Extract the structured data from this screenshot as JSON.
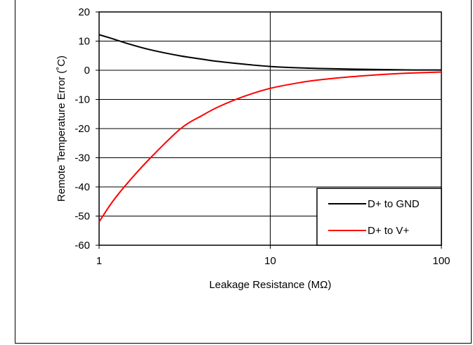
{
  "chart_data": {
    "type": "line",
    "xlabel": "Leakage Resistance (MΩ)",
    "ylabel": "Remote Temperature Error (˚C)",
    "xscale": "log",
    "xlim": [
      1,
      100
    ],
    "ylim": [
      -60,
      20
    ],
    "x_ticks": [
      1,
      10,
      100
    ],
    "x_tick_labels": [
      "1",
      "10",
      "100"
    ],
    "y_ticks": [
      20,
      10,
      0,
      -10,
      -20,
      -30,
      -40,
      -50,
      -60
    ],
    "y_tick_labels": [
      "20",
      "10",
      "0",
      "-10",
      "-20",
      "-30",
      "-40",
      "-50",
      "-60"
    ],
    "grid": true,
    "legend_position": "bottom-right",
    "series": [
      {
        "name": "D+ to GND",
        "color": "#000000",
        "x": [
          1,
          1.2,
          1.5,
          2,
          3,
          4,
          5,
          7,
          10,
          15,
          20,
          30,
          50,
          70,
          100
        ],
        "y": [
          12.2,
          10.8,
          9.0,
          7.0,
          4.9,
          3.8,
          3.0,
          2.1,
          1.3,
          0.8,
          0.6,
          0.4,
          0.2,
          0.1,
          0.1
        ]
      },
      {
        "name": "D+ to V+",
        "color": "#ff0000",
        "x": [
          1,
          1.2,
          1.5,
          2,
          3,
          4,
          5,
          7,
          10,
          15,
          20,
          30,
          50,
          70,
          100
        ],
        "y": [
          -52,
          -45,
          -38,
          -30,
          -20,
          -15.5,
          -12.5,
          -9,
          -6.2,
          -4.2,
          -3.2,
          -2.2,
          -1.3,
          -0.9,
          -0.6
        ]
      }
    ]
  }
}
